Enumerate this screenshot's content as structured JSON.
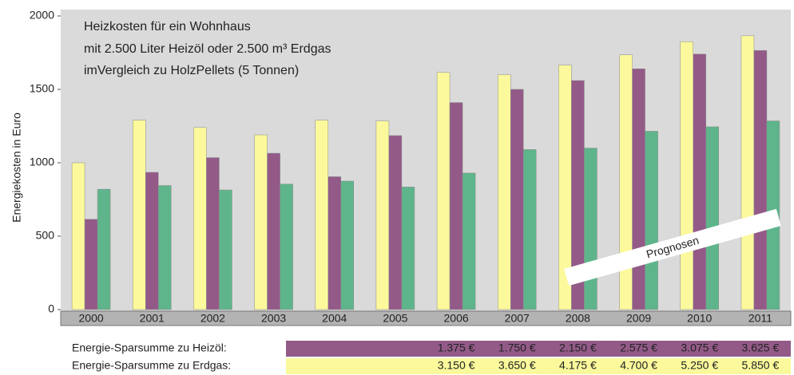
{
  "chart_data": {
    "type": "bar",
    "title": [
      "Heizkosten für ein Wohnhaus",
      "mit 2.500 Liter Heizöl oder 2.500 m³ Erdgas",
      "imVergleich zu HolzPellets (5 Tonnen)"
    ],
    "ylabel": "Energiekosten in Euro",
    "annotation": "Prognosen",
    "categories": [
      "2000",
      "2001",
      "2002",
      "2003",
      "2004",
      "2005",
      "2006",
      "2007",
      "2008",
      "2009",
      "2010",
      "2011"
    ],
    "series": [
      {
        "color": "#fbf99b",
        "values": [
          1000,
          1290,
          1240,
          1190,
          1290,
          1285,
          1615,
          1600,
          1665,
          1735,
          1825,
          1865
        ]
      },
      {
        "color": "#935a88",
        "values": [
          615,
          935,
          1035,
          1065,
          905,
          1185,
          1410,
          1500,
          1560,
          1640,
          1740,
          1765
        ]
      },
      {
        "color": "#5fb58b",
        "values": [
          820,
          845,
          815,
          855,
          875,
          835,
          930,
          1090,
          1100,
          1215,
          1245,
          1285
        ]
      }
    ],
    "ylim": [
      0,
      2000
    ],
    "yticks": [
      0,
      500,
      1000,
      1500,
      2000
    ]
  },
  "table": {
    "rows": [
      {
        "label": "Energie-Sparsumme zu Heizöl:",
        "color": "#935a88",
        "cells": [
          "1.375 €",
          "1.750 €",
          "2.150 €",
          "2.575 €",
          "3.075 €",
          "3.625 €"
        ]
      },
      {
        "label": "Energie-Sparsumme zu Erdgas:",
        "color": "#fbf99b",
        "cells": [
          "3.150 €",
          "3.650 €",
          "4.175 €",
          "4.700 €",
          "5.250 €",
          "5.850 €"
        ]
      }
    ]
  }
}
